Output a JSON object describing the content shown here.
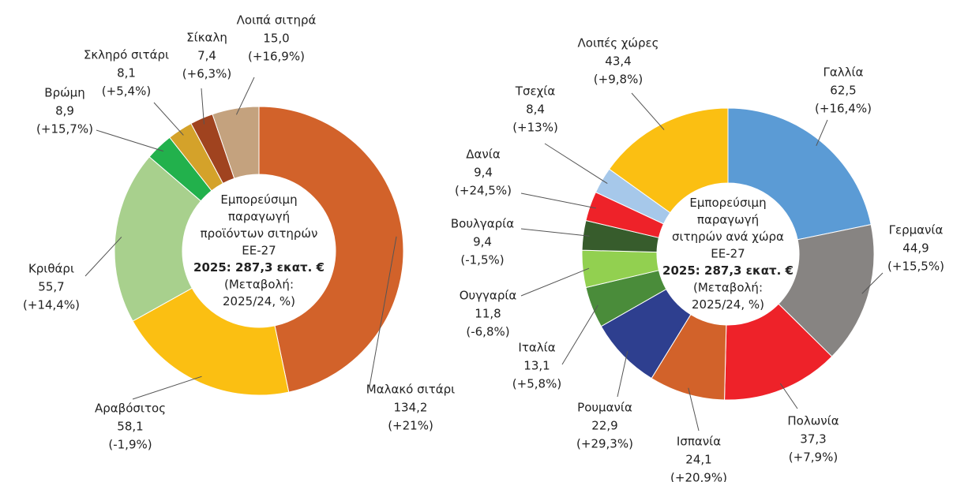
{
  "chart_data": [
    {
      "type": "donut",
      "center_text": [
        "Εμπορεύσιμη",
        "παραγωγή",
        "προϊόντων σιτηρών",
        "ΕΕ-27",
        "2025: 287,3 εκατ. €",
        "(Μεταβολή:",
        "2025/24, %)"
      ],
      "categories": [
        "Μαλακό σιτάρι",
        "Αραβόσιτος",
        "Κριθάρι",
        "Βρώμη",
        "Σκληρό σιτάρι",
        "Σίκαλη",
        "Λοιπά σιτηρά"
      ],
      "values": [
        134.2,
        58.1,
        55.7,
        8.9,
        8.1,
        7.4,
        15.0
      ],
      "value_labels": [
        "134,2",
        "58,1",
        "55,7",
        "8,9",
        "8,1",
        "7,4",
        "15,0"
      ],
      "change_labels": [
        "(+21%)",
        "(-1,9%)",
        "(+14,4%)",
        "(+15,7%)",
        "(+5,4%)",
        "(+6,3%)",
        "(+16,9%)"
      ],
      "colors": [
        "#d2622a",
        "#fbbf12",
        "#a8d08d",
        "#22b14c",
        "#d4a22a",
        "#a0431f",
        "#c4a27e"
      ]
    },
    {
      "type": "donut",
      "center_text": [
        "Εμπορεύσιμη",
        "παραγωγή",
        "σιτηρών ανά χώρα",
        "ΕΕ-27",
        "2025: 287,3 εκατ. €",
        "(Μεταβολή:",
        "2025/24, %)"
      ],
      "categories": [
        "Γαλλία",
        "Γερμανία",
        "Πολωνία",
        "Ισπανία",
        "Ρουμανία",
        "Ιταλία",
        "Ουγγαρία",
        "Βουλγαρία",
        "Δανία",
        "Τσεχία",
        "Λοιπές χώρες"
      ],
      "values": [
        62.5,
        44.9,
        37.3,
        24.1,
        22.9,
        13.1,
        11.8,
        9.4,
        9.4,
        8.4,
        43.4
      ],
      "value_labels": [
        "62,5",
        "44,9",
        "37,3",
        "24,1",
        "22,9",
        "13,1",
        "11,8",
        "9,4",
        "9,4",
        "8,4",
        "43,4"
      ],
      "change_labels": [
        "(+16,4%)",
        "(+15,5%)",
        "(+7,9%)",
        "(+20,9%)",
        "(+29,3%)",
        "(+5,8%)",
        "(-6,8%)",
        "(-1,5%)",
        "(+24,5%)",
        "(+13%)",
        "(+9,8%)"
      ],
      "colors": [
        "#5b9bd5",
        "#878482",
        "#ee2229",
        "#d2622a",
        "#2e3f8f",
        "#4a8c3a",
        "#92d050",
        "#375c2c",
        "#ee2229",
        "#a6c8ea",
        "#fbbf12"
      ]
    }
  ]
}
